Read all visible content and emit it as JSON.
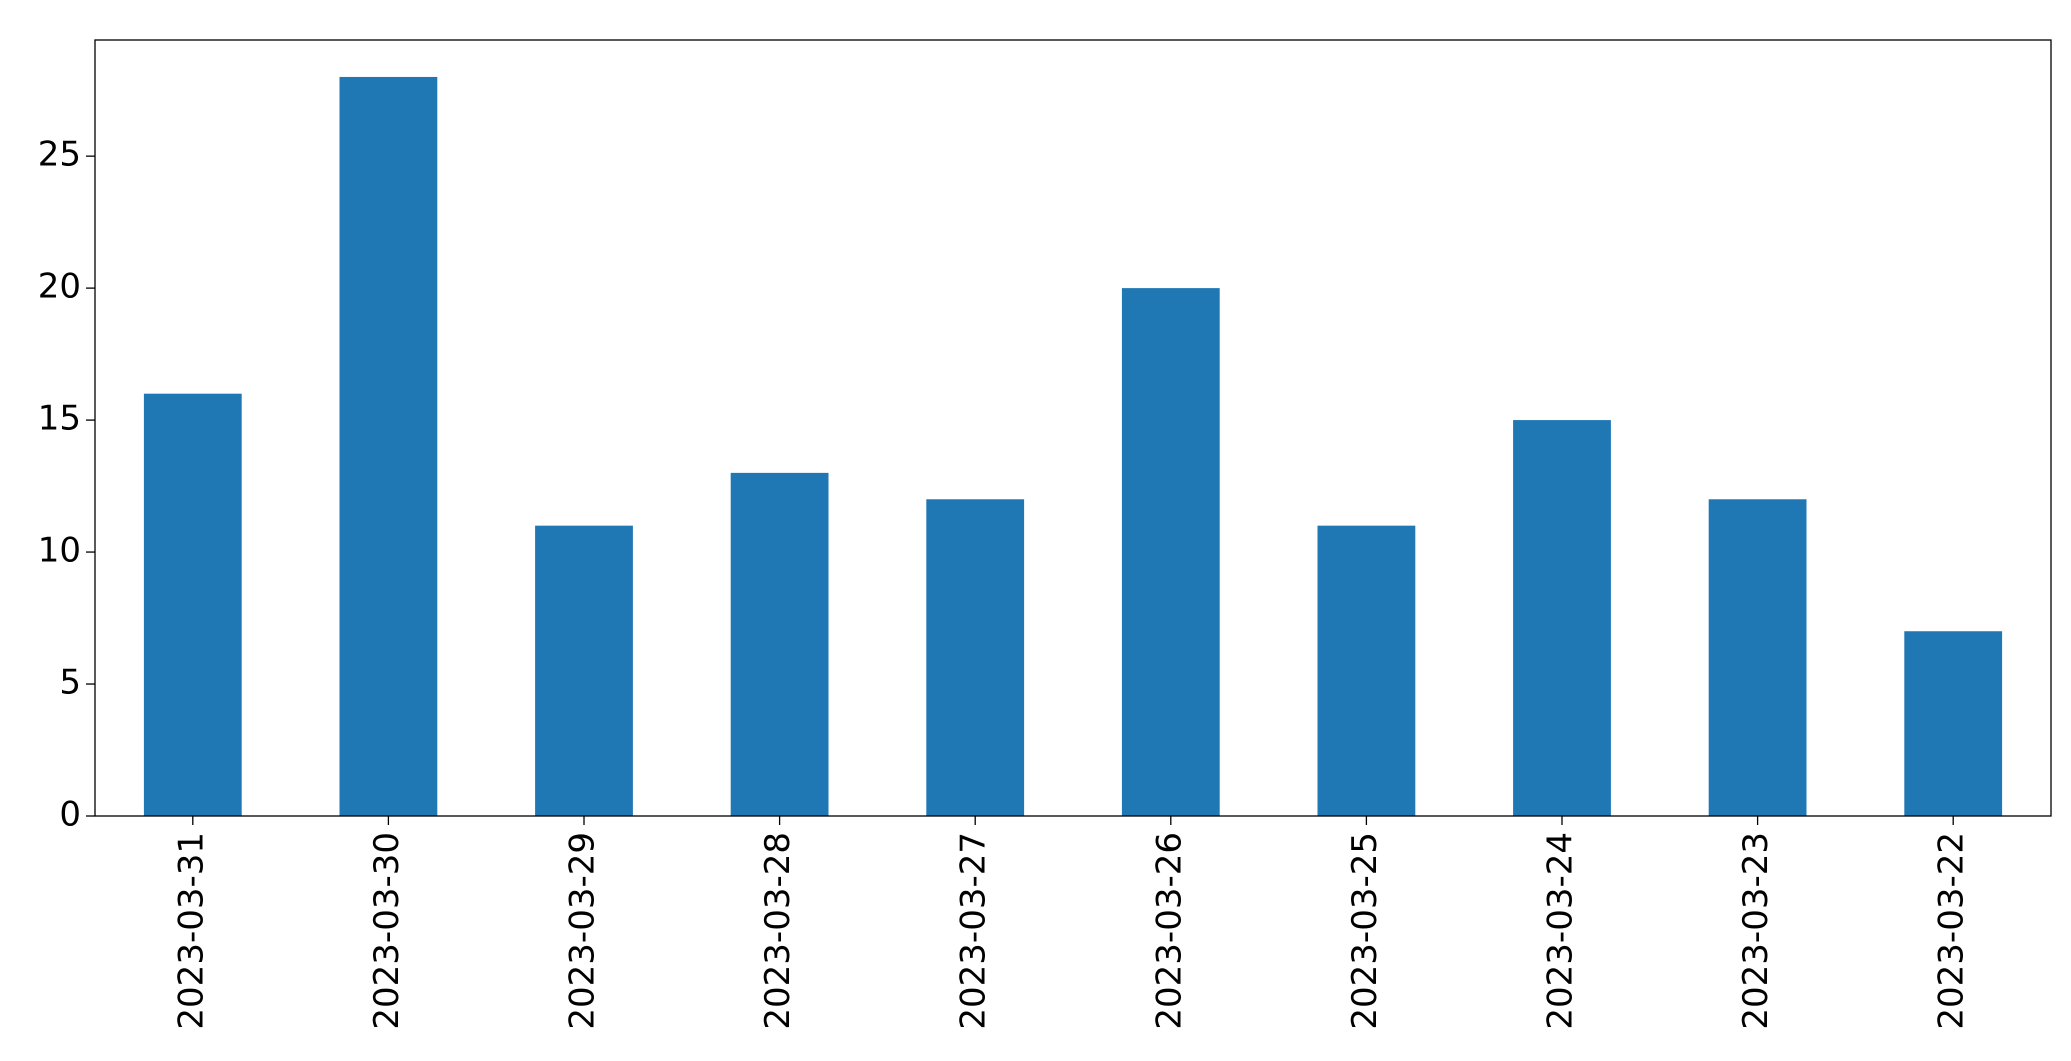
{
  "chart_data": {
    "type": "bar",
    "categories": [
      "2023-03-31",
      "2023-03-30",
      "2023-03-29",
      "2023-03-28",
      "2023-03-27",
      "2023-03-26",
      "2023-03-25",
      "2023-03-24",
      "2023-03-23",
      "2023-03-22"
    ],
    "values": [
      16,
      28,
      11,
      13,
      12,
      20,
      11,
      15,
      12,
      7
    ],
    "color": "#1f77b4",
    "ylim": [
      0,
      29.4
    ],
    "yticks": [
      0,
      5,
      10,
      15,
      20,
      25
    ],
    "grid": false
  }
}
